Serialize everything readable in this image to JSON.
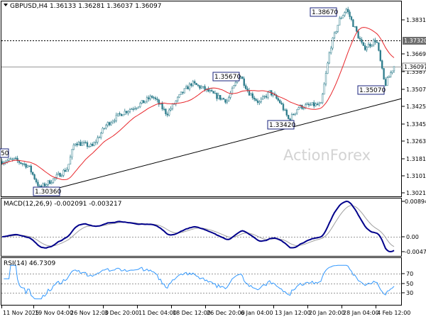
{
  "chart_data": [
    {
      "type": "candlestick",
      "panel": "price",
      "title": "GBPUSD,H4  1.36133 1.36281 1.36037 1.36097",
      "watermark": "ActionForex",
      "ylim": [
        1.3005,
        1.3885
      ],
      "y_ticks": [
        "1.38310",
        "1.36690",
        "1.35870",
        "1.35070",
        "1.34250",
        "1.33450",
        "1.32630",
        "1.31810",
        "1.31010",
        "1.30210"
      ],
      "current_price_label": "1.36097",
      "level_label": "1.37320",
      "annotations": [
        "1.38670",
        "1.35670",
        "1.35070",
        "1.33420",
        "1.30360",
        "50"
      ],
      "color_up": "#2e7d8c",
      "color_down": "#2e7d8c",
      "ma_color": "#e8262b",
      "trendline_color": "#000000"
    },
    {
      "type": "line",
      "panel": "macd",
      "title": "MACD(12,26,9) -0.002091 -0.003217",
      "y_ticks": [
        "0.008942",
        "0.00",
        "-0.004725"
      ],
      "main_color": "#00008b",
      "signal_color": "#a0a0a0"
    },
    {
      "type": "line",
      "panel": "rsi",
      "title": "RSI(14) 46.7309",
      "ylim": [
        0,
        100
      ],
      "y_ticks": [
        "70",
        "50",
        "30"
      ],
      "line_color": "#3399ff"
    },
    {
      "type": "axis",
      "x_ticks": [
        "11 Nov 2025",
        "19 Nov 04:00",
        "26 Nov 12:00",
        "3 Dec 20:00",
        "11 Dec 04:00",
        "18 Dec 12:00",
        "26 Dec 20:00",
        "6 Jan 04:00",
        "13 Jan 12:00",
        "20 Jan 20:00",
        "28 Jan 04:00",
        "4 Feb 12:00"
      ]
    }
  ]
}
